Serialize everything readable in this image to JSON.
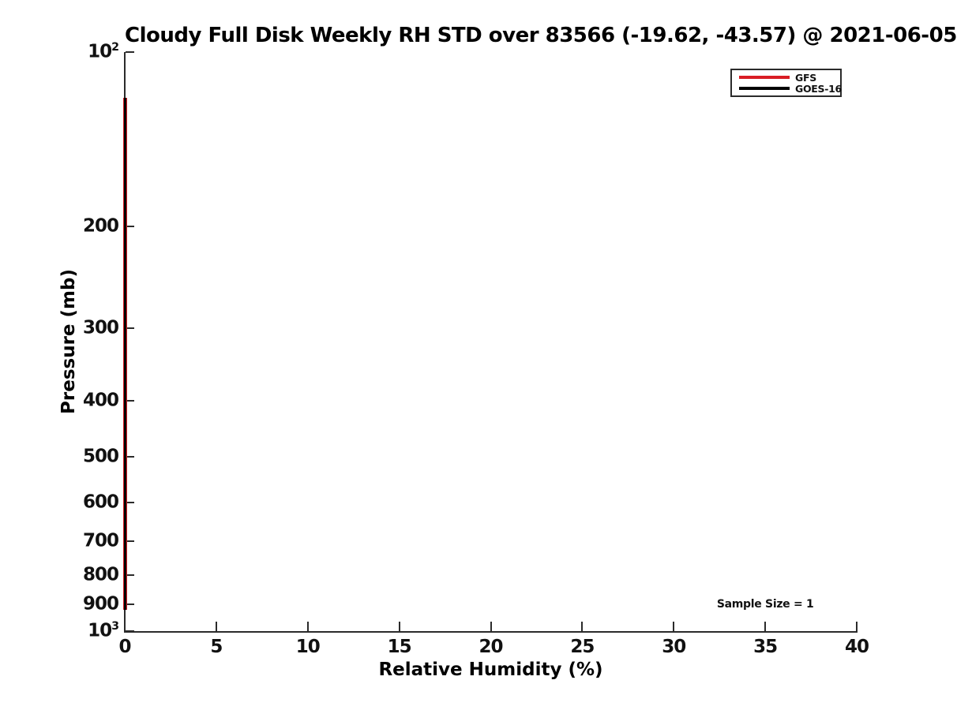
{
  "figure": {
    "title": "Cloudy Full Disk Weekly RH STD over 83566 (-19.62, -43.57) @ 2021-06-05",
    "background_color": "#ffffff"
  },
  "axes": {
    "x": {
      "label": "Relative Humidity (%)",
      "ticks": [
        {
          "value": 0,
          "label": "0"
        },
        {
          "value": 5,
          "label": "5"
        },
        {
          "value": 10,
          "label": "10"
        },
        {
          "value": 15,
          "label": "15"
        },
        {
          "value": 20,
          "label": "20"
        },
        {
          "value": 25,
          "label": "25"
        },
        {
          "value": 30,
          "label": "30"
        },
        {
          "value": 35,
          "label": "35"
        },
        {
          "value": 40,
          "label": "40"
        }
      ]
    },
    "y": {
      "label": "Pressure (mb)",
      "scale": "log",
      "ticks": [
        {
          "value": 100,
          "base": "10",
          "sup": "2"
        },
        {
          "value": 200,
          "label": "200"
        },
        {
          "value": 300,
          "label": "300"
        },
        {
          "value": 400,
          "label": "400"
        },
        {
          "value": 500,
          "label": "500"
        },
        {
          "value": 600,
          "label": "600"
        },
        {
          "value": 700,
          "label": "700"
        },
        {
          "value": 800,
          "label": "800"
        },
        {
          "value": 900,
          "label": "900"
        },
        {
          "value": 1000,
          "base": "10",
          "sup": "3"
        }
      ]
    }
  },
  "legend": {
    "entries": [
      {
        "label": "GFS",
        "color": "#d91c24"
      },
      {
        "label": "GOES-16",
        "color": "#000000"
      }
    ]
  },
  "annotation": {
    "text": "Sample Size = 1"
  },
  "chart_data": {
    "type": "line",
    "title": "Cloudy Full Disk Weekly RH STD over 83566 (-19.62, -43.57) @ 2021-06-05",
    "xlabel": "Relative Humidity (%)",
    "ylabel": "Pressure (mb)",
    "xlim": [
      0,
      40
    ],
    "ylim": [
      100,
      1000
    ],
    "y_scale": "log",
    "y_direction": "pressure-increases-downward",
    "grid": false,
    "legend_position": "upper-right",
    "series": [
      {
        "name": "GFS",
        "color": "#d91c24",
        "x_constant": 0,
        "pressure_top_mb": 120,
        "pressure_bottom_mb": 920,
        "description": "Vertical line at RH STD = 0% spanning ~120-920 mb"
      },
      {
        "name": "GOES-16",
        "color": "#000000",
        "x_constant": 0,
        "pressure_top_mb": 120,
        "pressure_bottom_mb": 920,
        "description": "Vertical line at RH STD = 0% spanning ~120-920 mb, overlapping GFS"
      }
    ],
    "annotations": [
      {
        "text": "Sample Size = 1",
        "x": 35,
        "y_pressure_mb": 900
      }
    ]
  }
}
